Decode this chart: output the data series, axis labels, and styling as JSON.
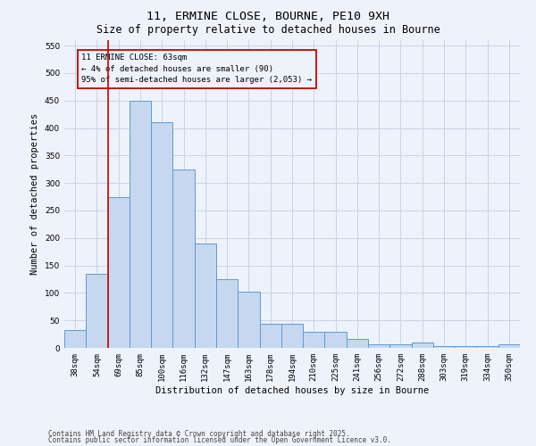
{
  "title1": "11, ERMINE CLOSE, BOURNE, PE10 9XH",
  "title2": "Size of property relative to detached houses in Bourne",
  "xlabel": "Distribution of detached houses by size in Bourne",
  "ylabel": "Number of detached properties",
  "categories": [
    "38sqm",
    "54sqm",
    "69sqm",
    "85sqm",
    "100sqm",
    "116sqm",
    "132sqm",
    "147sqm",
    "163sqm",
    "178sqm",
    "194sqm",
    "210sqm",
    "225sqm",
    "241sqm",
    "256sqm",
    "272sqm",
    "288sqm",
    "303sqm",
    "319sqm",
    "334sqm",
    "350sqm"
  ],
  "values": [
    33,
    135,
    275,
    450,
    410,
    325,
    190,
    125,
    102,
    44,
    44,
    30,
    30,
    16,
    7,
    7,
    10,
    4,
    3,
    3,
    6
  ],
  "bar_color": "#c5d8f0",
  "bar_edge_color": "#5b9bd5",
  "grid_color": "#c8d4e8",
  "background_color": "#eef2fa",
  "vline_x": 1.5,
  "vline_color": "#cc0000",
  "annotation_box_text": "11 ERMINE CLOSE: 63sqm\n← 4% of detached houses are smaller (90)\n95% of semi-detached houses are larger (2,053) →",
  "ylim": [
    0,
    560
  ],
  "yticks": [
    0,
    50,
    100,
    150,
    200,
    250,
    300,
    350,
    400,
    450,
    500,
    550
  ],
  "footer1": "Contains HM Land Registry data © Crown copyright and database right 2025.",
  "footer2": "Contains public sector information licensed under the Open Government Licence v3.0.",
  "title_fontsize": 9.5,
  "subtitle_fontsize": 8.5,
  "axis_label_fontsize": 7.5,
  "tick_fontsize": 6.5,
  "annot_fontsize": 6.5,
  "footer_fontsize": 5.5
}
